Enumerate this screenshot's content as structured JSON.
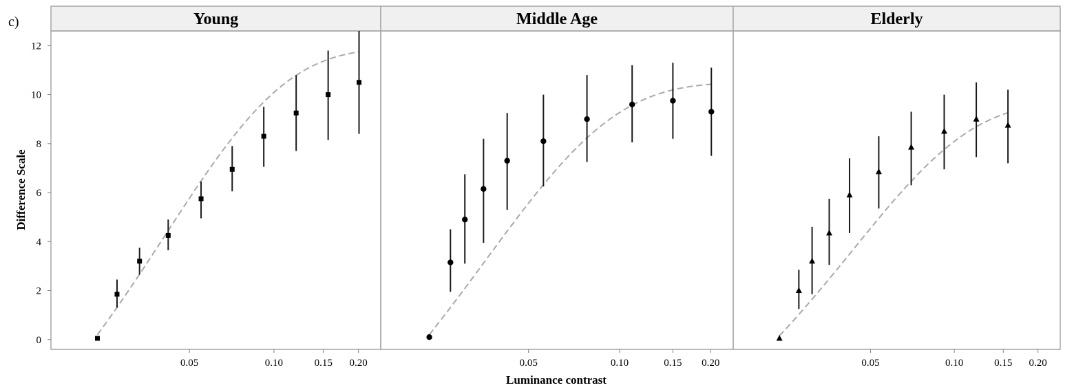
{
  "figure": {
    "panel_label": "c)",
    "xlabel": "Luminance contrast",
    "ylabel": "Difference Scale"
  },
  "chart_data": {
    "type": "scatter",
    "x_scale": "log",
    "xlim": [
      0.0188,
      0.205
    ],
    "ylim": [
      -0.4,
      12.6
    ],
    "x_ticks": [
      0.05,
      0.1,
      0.15,
      0.2
    ],
    "x_tick_labels": [
      "0.05",
      "0.10",
      "0.15",
      "0.20"
    ],
    "y_ticks": [
      0,
      2,
      4,
      6,
      8,
      10,
      12
    ],
    "y_tick_labels": [
      "0",
      "2",
      "4",
      "6",
      "8",
      "10",
      "12"
    ],
    "grid": false,
    "legend": "none",
    "panels": [
      {
        "title": "Young",
        "marker": "square",
        "points": [
          {
            "x": 0.0235,
            "y": 0.05,
            "lo": 0.05,
            "hi": 0.05
          },
          {
            "x": 0.0276,
            "y": 1.85,
            "lo": 1.3,
            "hi": 2.45
          },
          {
            "x": 0.0332,
            "y": 3.2,
            "lo": 2.65,
            "hi": 3.75
          },
          {
            "x": 0.042,
            "y": 4.25,
            "lo": 3.65,
            "hi": 4.9
          },
          {
            "x": 0.055,
            "y": 5.75,
            "lo": 4.95,
            "hi": 6.45
          },
          {
            "x": 0.071,
            "y": 6.95,
            "lo": 6.05,
            "hi": 7.9
          },
          {
            "x": 0.092,
            "y": 8.3,
            "lo": 7.05,
            "hi": 9.5
          },
          {
            "x": 0.12,
            "y": 9.25,
            "lo": 7.7,
            "hi": 10.8
          },
          {
            "x": 0.156,
            "y": 10.0,
            "lo": 8.15,
            "hi": 11.8
          },
          {
            "x": 0.201,
            "y": 10.5,
            "lo": 8.4,
            "hi": 12.6
          }
        ],
        "fit": {
          "a": 11.9,
          "x0": 0.0228,
          "k": 0.041
        }
      },
      {
        "title": "Middle Age",
        "marker": "circle",
        "points": [
          {
            "x": 0.0235,
            "y": 0.1,
            "lo": 0.1,
            "hi": 0.1
          },
          {
            "x": 0.0276,
            "y": 3.15,
            "lo": 1.95,
            "hi": 4.5
          },
          {
            "x": 0.0308,
            "y": 4.9,
            "lo": 3.1,
            "hi": 6.75
          },
          {
            "x": 0.0355,
            "y": 6.15,
            "lo": 3.95,
            "hi": 8.2
          },
          {
            "x": 0.0425,
            "y": 7.3,
            "lo": 5.3,
            "hi": 9.25
          },
          {
            "x": 0.056,
            "y": 8.1,
            "lo": 6.25,
            "hi": 10.0
          },
          {
            "x": 0.078,
            "y": 9.0,
            "lo": 7.25,
            "hi": 10.8
          },
          {
            "x": 0.11,
            "y": 9.6,
            "lo": 8.05,
            "hi": 11.2
          },
          {
            "x": 0.15,
            "y": 9.75,
            "lo": 8.2,
            "hi": 11.3
          },
          {
            "x": 0.201,
            "y": 9.3,
            "lo": 7.5,
            "hi": 11.1
          }
        ],
        "fit": {
          "a": 10.5,
          "x0": 0.0228,
          "k": 0.036
        }
      },
      {
        "title": "Elderly",
        "marker": "triangle",
        "points": [
          {
            "x": 0.0235,
            "y": 0.05,
            "lo": 0.05,
            "hi": 0.05
          },
          {
            "x": 0.0276,
            "y": 2.0,
            "lo": 1.25,
            "hi": 2.85
          },
          {
            "x": 0.0308,
            "y": 3.2,
            "lo": 1.85,
            "hi": 4.6
          },
          {
            "x": 0.0355,
            "y": 4.35,
            "lo": 3.05,
            "hi": 5.75
          },
          {
            "x": 0.042,
            "y": 5.9,
            "lo": 4.35,
            "hi": 7.4
          },
          {
            "x": 0.0535,
            "y": 6.85,
            "lo": 5.35,
            "hi": 8.3
          },
          {
            "x": 0.07,
            "y": 7.85,
            "lo": 6.3,
            "hi": 9.3
          },
          {
            "x": 0.092,
            "y": 8.5,
            "lo": 6.95,
            "hi": 10.0
          },
          {
            "x": 0.12,
            "y": 9.0,
            "lo": 7.45,
            "hi": 10.5
          },
          {
            "x": 0.156,
            "y": 8.75,
            "lo": 7.2,
            "hi": 10.2
          }
        ],
        "fit": {
          "a": 9.7,
          "x0": 0.0228,
          "k": 0.043
        }
      }
    ]
  }
}
